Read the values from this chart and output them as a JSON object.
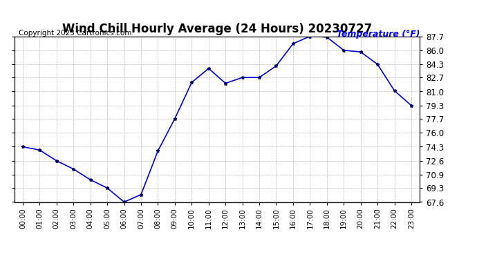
{
  "title": "Wind Chill Hourly Average (24 Hours) 20230727",
  "copyright": "Copyright 2023 Cartronics.com",
  "legend_label": "Temperature (°F)",
  "hours": [
    "00:00",
    "01:00",
    "02:00",
    "03:00",
    "04:00",
    "05:00",
    "06:00",
    "07:00",
    "08:00",
    "09:00",
    "10:00",
    "11:00",
    "12:00",
    "13:00",
    "14:00",
    "15:00",
    "16:00",
    "17:00",
    "18:00",
    "19:00",
    "20:00",
    "21:00",
    "22:00",
    "23:00"
  ],
  "values": [
    74.3,
    73.9,
    72.6,
    71.6,
    70.3,
    69.3,
    67.6,
    68.5,
    73.8,
    77.7,
    82.1,
    83.8,
    82.0,
    82.7,
    82.7,
    84.1,
    86.8,
    87.7,
    87.6,
    86.0,
    85.8,
    84.3,
    81.1,
    79.3
  ],
  "ylim_min": 67.6,
  "ylim_max": 87.7,
  "yticks": [
    67.6,
    69.3,
    70.9,
    72.6,
    74.3,
    76.0,
    77.7,
    79.3,
    81.0,
    82.7,
    84.3,
    86.0,
    87.7
  ],
  "line_color": "#0000cc",
  "marker": "*",
  "marker_color": "#000066",
  "title_fontsize": 12,
  "copyright_fontsize": 7.5,
  "legend_color": "#0000ff",
  "background_color": "#ffffff",
  "grid_color": "#bbbbbb",
  "ytick_fontsize": 8.5,
  "xtick_fontsize": 7.5
}
